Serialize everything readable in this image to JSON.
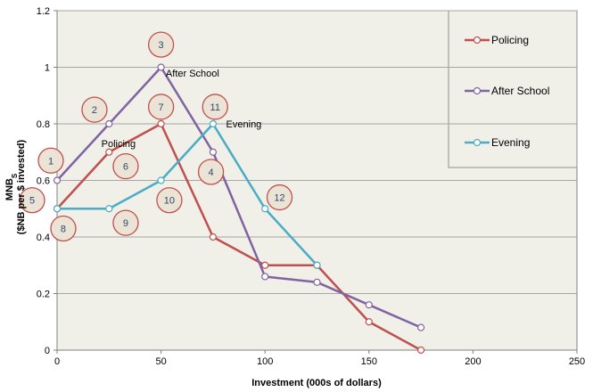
{
  "chart_data": {
    "type": "line",
    "title": "",
    "xlabel": "Investment (000s of dollars)",
    "ylabel": {
      "line1": "MNB",
      "line1_sub": "S",
      "line2": "($NB per $ invested)"
    },
    "xlim": [
      0,
      250
    ],
    "ylim": [
      0,
      1.2
    ],
    "x_ticks": [
      "0",
      "50",
      "100",
      "150",
      "200",
      "250"
    ],
    "y_ticks": [
      "0",
      "0.2",
      "0.4",
      "0.6",
      "0.8",
      "1",
      "1.2"
    ],
    "grid": true,
    "legend_position": "right",
    "series": [
      {
        "name": "Policing",
        "color": "#c0504d",
        "x": [
          0,
          25,
          50,
          75,
          100,
          125,
          150,
          175
        ],
        "y": [
          0.5,
          0.7,
          0.8,
          0.4,
          0.3,
          0.3,
          0.1,
          0.0
        ]
      },
      {
        "name": "After School",
        "color": "#8064a2",
        "x": [
          0,
          25,
          50,
          75,
          100,
          125,
          150,
          175
        ],
        "y": [
          0.6,
          0.8,
          1.0,
          0.7,
          0.26,
          0.24,
          0.16,
          0.08
        ]
      },
      {
        "name": "Evening",
        "color": "#4bacc6",
        "x": [
          0,
          25,
          50,
          75,
          100,
          125
        ],
        "y": [
          0.5,
          0.5,
          0.6,
          0.8,
          0.5,
          0.3
        ]
      }
    ],
    "annotations": [
      {
        "text": "After School",
        "x": 51,
        "y": 0.98
      },
      {
        "text": "Policing",
        "x": 20,
        "y": 0.73
      },
      {
        "text": "Evening",
        "x": 80,
        "y": 0.8
      }
    ],
    "badges": [
      {
        "label": "1",
        "x": -3,
        "y": 0.67
      },
      {
        "label": "2",
        "x": 18,
        "y": 0.85
      },
      {
        "label": "3",
        "x": 50,
        "y": 1.08
      },
      {
        "label": "4",
        "x": 74,
        "y": 0.63
      },
      {
        "label": "5",
        "x": -12,
        "y": 0.53
      },
      {
        "label": "6",
        "x": 33,
        "y": 0.65
      },
      {
        "label": "7",
        "x": 50,
        "y": 0.86
      },
      {
        "label": "8",
        "x": 3,
        "y": 0.43
      },
      {
        "label": "9",
        "x": 33,
        "y": 0.45
      },
      {
        "label": "10",
        "x": 54,
        "y": 0.53
      },
      {
        "label": "11",
        "x": 76,
        "y": 0.86
      },
      {
        "label": "12",
        "x": 107,
        "y": 0.54
      }
    ]
  }
}
